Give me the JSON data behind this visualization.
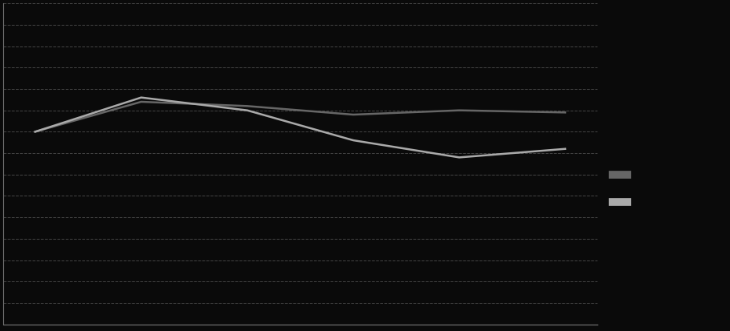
{
  "x_values": [
    0,
    1,
    2,
    3,
    4,
    5
  ],
  "series1_y": [
    5.5,
    6.2,
    6.1,
    5.9,
    6.0,
    5.95
  ],
  "series2_y": [
    5.5,
    6.3,
    6.0,
    5.3,
    4.9,
    5.1
  ],
  "series1_color": "#666666",
  "series2_color": "#aaaaaa",
  "background_color": "#0a0a0a",
  "plot_bg_color": "#0a0a0a",
  "grid_color": "#444444",
  "spine_color": "#777777",
  "ylim": [
    1.0,
    8.5
  ],
  "xlim": [
    -0.3,
    5.3
  ],
  "yticks": [
    1.0,
    1.5,
    2.0,
    2.5,
    3.0,
    3.5,
    4.0,
    4.5,
    5.0,
    5.5,
    6.0,
    6.5,
    7.0,
    7.5,
    8.0,
    8.5
  ],
  "xticks": [
    0,
    1,
    2,
    3,
    4,
    5
  ]
}
